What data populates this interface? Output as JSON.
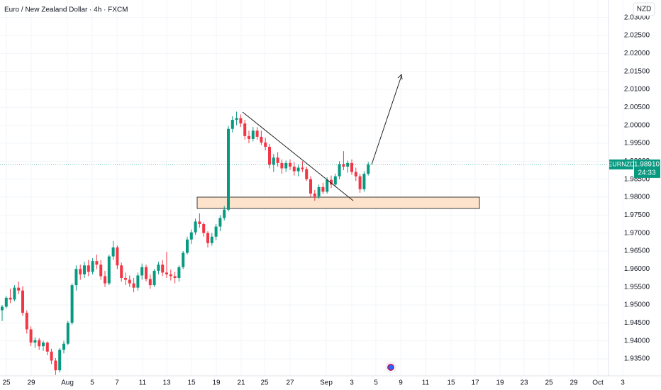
{
  "chart_data": {
    "type": "candlestick",
    "title": "Euro / New Zealand Dollar · 4h · FXCM",
    "currency": "NZD",
    "symbol": "EURNZD",
    "countdown": "24:33",
    "up_color": "#089981",
    "down_color": "#f23645",
    "ylim": [
      1.93026,
      2.03487
    ],
    "yticks": [
      {
        "value": 2.03,
        "label": "2.03000"
      },
      {
        "value": 2.025,
        "label": "2.02500"
      },
      {
        "value": 2.02,
        "label": "2.02000"
      },
      {
        "value": 2.015,
        "label": "2.01500"
      },
      {
        "value": 2.01,
        "label": "2.01000"
      },
      {
        "value": 2.005,
        "label": "2.00500"
      },
      {
        "value": 2.0,
        "label": "2.00000"
      },
      {
        "value": 1.995,
        "label": "1.99500"
      },
      {
        "value": 1.99,
        "label": "1.99000"
      },
      {
        "value": 1.985,
        "label": "1.98500"
      },
      {
        "value": 1.98,
        "label": "1.98000"
      },
      {
        "value": 1.975,
        "label": "1.97500"
      },
      {
        "value": 1.97,
        "label": "1.97000"
      },
      {
        "value": 1.965,
        "label": "1.96500"
      },
      {
        "value": 1.96,
        "label": "1.96000"
      },
      {
        "value": 1.955,
        "label": "1.95500"
      },
      {
        "value": 1.95,
        "label": "1.95000"
      },
      {
        "value": 1.945,
        "label": "1.94500"
      },
      {
        "value": 1.94,
        "label": "1.94000"
      },
      {
        "value": 1.935,
        "label": "1.93500"
      }
    ],
    "xtick_labels": [
      "25",
      "29",
      "Aug",
      "5",
      "7",
      "11",
      "13",
      "15",
      "19",
      "21",
      "25",
      "27",
      "Sep",
      "3",
      "5",
      "9",
      "11",
      "15",
      "17",
      "19",
      "23",
      "25",
      "29",
      "Oct",
      "3"
    ],
    "last_price": {
      "value": 1.9891,
      "label": "1.98910"
    },
    "grid": true,
    "open": [
      1.9485,
      1.9495,
      1.952,
      1.9515,
      1.9548,
      1.954,
      1.9478,
      1.9432,
      1.9395,
      1.9402,
      1.9385,
      1.9395,
      1.937,
      1.9345,
      1.9318,
      1.9375,
      1.9392,
      1.945,
      1.9555,
      1.96,
      1.9585,
      1.961,
      1.9592,
      1.9622,
      1.9612,
      1.958,
      1.956,
      1.9635,
      1.966,
      1.961,
      1.9575,
      1.957,
      1.956,
      1.9548,
      1.9582,
      1.9605,
      1.9572,
      1.9555,
      1.9595,
      1.9612,
      1.959,
      1.9585,
      1.958,
      1.9575,
      1.9605,
      1.9645,
      1.9682,
      1.9702,
      1.9732,
      1.9725,
      1.97,
      1.9672,
      1.969,
      1.9718,
      1.9742,
      1.9765,
      1.999,
      2.0015,
      2.002,
      2.0005,
      1.997,
      1.9962,
      1.9985,
      1.9968,
      1.9952,
      1.994,
      1.989,
      1.991,
      1.9895,
      1.988,
      1.9895,
      1.9885,
      1.9872,
      1.9882,
      1.9878,
      1.985,
      1.981,
      1.9802,
      1.9828,
      1.9815,
      1.9848,
      1.9835,
      1.9858,
      1.9892,
      1.9885,
      1.9895,
      1.987,
      1.9858,
      1.9822,
      1.9865
    ],
    "high": [
      1.95,
      1.9525,
      1.9545,
      1.9555,
      1.9565,
      1.9552,
      1.9485,
      1.944,
      1.941,
      1.9408,
      1.94,
      1.9398,
      1.9378,
      1.9352,
      1.938,
      1.94,
      1.9455,
      1.956,
      1.961,
      1.9612,
      1.962,
      1.9625,
      1.963,
      1.964,
      1.9625,
      1.9595,
      1.964,
      1.9678,
      1.9665,
      1.9618,
      1.959,
      1.9582,
      1.9575,
      1.959,
      1.9615,
      1.9612,
      1.9585,
      1.96,
      1.962,
      1.9625,
      1.9648,
      1.9598,
      1.9592,
      1.961,
      1.965,
      1.969,
      1.971,
      1.974,
      1.9755,
      1.973,
      1.9705,
      1.97,
      1.9725,
      1.975,
      1.9775,
      1.9998,
      2.0025,
      2.0038,
      2.003,
      2.0015,
      1.9985,
      1.9995,
      1.9995,
      1.9985,
      1.9965,
      1.9948,
      1.992,
      1.9925,
      1.9905,
      1.9902,
      1.9905,
      1.9898,
      1.989,
      1.99,
      1.9885,
      1.9858,
      1.982,
      1.9835,
      1.984,
      1.9855,
      1.986,
      1.9865,
      1.99,
      1.9928,
      1.9902,
      1.9905,
      1.9882,
      1.9865,
      1.9872,
      1.9898
    ],
    "low": [
      1.9455,
      1.949,
      1.9505,
      1.951,
      1.953,
      1.947,
      1.942,
      1.9385,
      1.938,
      1.9375,
      1.9372,
      1.936,
      1.9335,
      1.9305,
      1.9312,
      1.9365,
      1.9388,
      1.9445,
      1.954,
      1.957,
      1.9575,
      1.958,
      1.9585,
      1.96,
      1.957,
      1.955,
      1.9555,
      1.9625,
      1.96,
      1.9565,
      1.9555,
      1.955,
      1.9535,
      1.954,
      1.957,
      1.9565,
      1.9545,
      1.955,
      1.9585,
      1.958,
      1.9575,
      1.9568,
      1.956,
      1.9565,
      1.96,
      1.964,
      1.967,
      1.9695,
      1.9715,
      1.969,
      1.966,
      1.9665,
      1.968,
      1.9705,
      1.9735,
      1.976,
      1.998,
      2.0,
      1.9995,
      1.996,
      1.995,
      1.9955,
      1.996,
      1.9945,
      1.993,
      1.988,
      1.987,
      1.9885,
      1.9865,
      1.987,
      1.9875,
      1.986,
      1.9858,
      1.987,
      1.9845,
      1.98,
      1.979,
      1.9795,
      1.9808,
      1.981,
      1.9825,
      1.9828,
      1.985,
      1.9875,
      1.9868,
      1.9862,
      1.9845,
      1.9812,
      1.9815,
      1.986
    ],
    "close": [
      1.9495,
      1.952,
      1.9515,
      1.9548,
      1.954,
      1.9478,
      1.9432,
      1.9395,
      1.9402,
      1.9385,
      1.9395,
      1.937,
      1.9345,
      1.9318,
      1.9375,
      1.9392,
      1.945,
      1.9555,
      1.96,
      1.9585,
      1.961,
      1.9592,
      1.9622,
      1.9612,
      1.958,
      1.956,
      1.9635,
      1.966,
      1.961,
      1.9575,
      1.957,
      1.956,
      1.9548,
      1.9582,
      1.9605,
      1.9572,
      1.9555,
      1.9595,
      1.9612,
      1.959,
      1.9585,
      1.958,
      1.9575,
      1.9605,
      1.9645,
      1.9682,
      1.9702,
      1.9732,
      1.9725,
      1.97,
      1.9672,
      1.969,
      1.9718,
      1.9742,
      1.9765,
      1.999,
      2.0015,
      2.002,
      2.0005,
      1.997,
      1.9962,
      1.9985,
      1.9968,
      1.9952,
      1.994,
      1.989,
      1.991,
      1.9895,
      1.988,
      1.9895,
      1.9885,
      1.9872,
      1.9882,
      1.9878,
      1.985,
      1.981,
      1.9802,
      1.9828,
      1.9815,
      1.9848,
      1.9835,
      1.9858,
      1.9892,
      1.9885,
      1.9895,
      1.987,
      1.9858,
      1.9822,
      1.9865,
      1.9891
    ]
  }
}
